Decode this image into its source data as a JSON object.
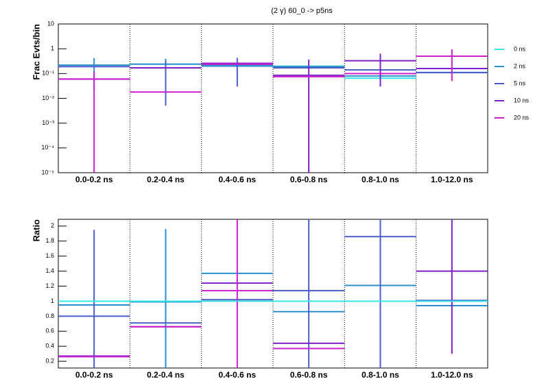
{
  "chart_data": [
    {
      "type": "step",
      "title": "(2 γ) 60_0 -> p5ns",
      "y_label": "Frac Evts/bin",
      "log_y": true,
      "grid": true,
      "legend": "right",
      "categories": [
        "0.0-0.2 ns",
        "0.2-0.4 ns",
        "0.4-0.6 ns",
        "0.6-0.8 ns",
        "0.8-1.0 ns",
        "1.0-12.0 ns"
      ],
      "ylim": [
        1e-05,
        10
      ],
      "yticks": [
        {
          "value": 1e-05,
          "label": "10⁻⁵"
        },
        {
          "value": 0.0001,
          "label": "10⁻⁴"
        },
        {
          "value": 0.001,
          "label": "10⁻³"
        },
        {
          "value": 0.01,
          "label": "10⁻²"
        },
        {
          "value": 0.1,
          "label": "10⁻¹"
        },
        1,
        10
      ],
      "series": [
        {
          "name": "0 ns",
          "color": "#33e6e6",
          "values": [
            0.22,
            0.24,
            0.22,
            0.2,
            0.065,
            0.11
          ],
          "errors": [
            null,
            null,
            null,
            null,
            null,
            null
          ]
        },
        {
          "name": "2 ns",
          "color": "#2a8fcf",
          "values": [
            0.22,
            0.24,
            0.2,
            0.19,
            0.08,
            0.11
          ],
          "errors": [
            0.2,
            0.16,
            null,
            null,
            null,
            null
          ]
        },
        {
          "name": "5 ns",
          "color": "#4a5cc8",
          "values": [
            0.19,
            0.17,
            0.23,
            0.17,
            0.14,
            0.11
          ],
          "errors": [
            null,
            0.165,
            0.2,
            null,
            null,
            null
          ]
        },
        {
          "name": "10 ns",
          "color": "#7d1fc8",
          "values": [
            0.06,
            0.17,
            0.26,
            0.085,
            0.33,
            0.16
          ],
          "errors": [
            null,
            null,
            null,
            0.28,
            0.3,
            null
          ]
        },
        {
          "name": "20 ns",
          "color": "#cc1fcc",
          "values": [
            0.06,
            0.018,
            0.24,
            0.075,
            0.1,
            0.5
          ],
          "errors": [
            0.06,
            null,
            null,
            null,
            null,
            0.45
          ]
        }
      ]
    },
    {
      "type": "step",
      "y_label": "Ratio",
      "log_y": false,
      "grid": true,
      "categories": [
        "0.0-0.2 ns",
        "0.2-0.4 ns",
        "0.4-0.6 ns",
        "0.6-0.8 ns",
        "0.8-1.0 ns",
        "1.0-12.0 ns"
      ],
      "ylim": [
        0.11,
        2.09
      ],
      "yticks": [
        0.2,
        0.4,
        0.6,
        0.8,
        1,
        1.2,
        1.4,
        1.6,
        1.8,
        2
      ],
      "series": [
        {
          "color": "#2a8fcf",
          "values": [
            0.95,
            0.99,
            1.37,
            0.86,
            1.21,
            0.94
          ],
          "errors": [
            null,
            0.97,
            null,
            null,
            null,
            null
          ]
        },
        {
          "color": "#4a5cc8",
          "values": [
            0.8,
            0.71,
            1.02,
            1.14,
            1.86,
            1.01
          ],
          "errors": [
            1.15,
            null,
            null,
            1.1,
            1.8,
            null
          ]
        },
        {
          "color": "#7d1fc8",
          "values": [
            0.27,
            0.66,
            1.24,
            0.44,
            1.0,
            1.4
          ],
          "errors": [
            null,
            null,
            null,
            null,
            null,
            1.1
          ]
        },
        {
          "color": "#cc1fcc",
          "values": [
            0.26,
            0.66,
            1.14,
            0.37,
            1.0,
            1.0
          ],
          "errors": [
            null,
            null,
            1.2,
            null,
            null,
            null
          ]
        },
        {
          "color": "#33e6e6",
          "values": [
            1,
            1,
            1,
            1,
            1,
            1
          ],
          "errors": [
            null,
            null,
            null,
            null,
            null,
            null
          ]
        }
      ]
    }
  ]
}
